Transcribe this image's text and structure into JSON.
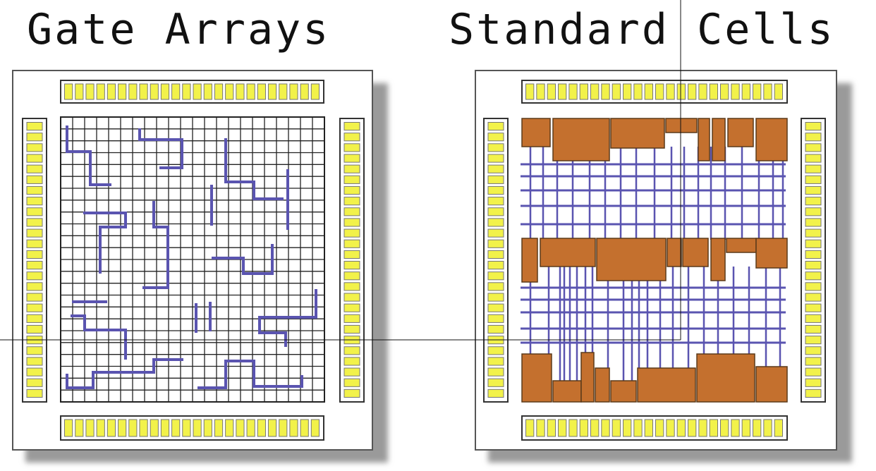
{
  "titles": {
    "gate_arrays": "Gate Arrays",
    "standard_cells": "Standard Cells"
  },
  "colors": {
    "pad_yellow": "#f2f24a",
    "wire_purple": "#5a54b0",
    "cell_brown": "#c4702e",
    "chip_border": "#555555",
    "shadow": "#9a9a9a",
    "grid": "#222222"
  },
  "icons": {
    "io_pad": "io-pad-icon",
    "logic_cell": "logic-cell-icon"
  }
}
